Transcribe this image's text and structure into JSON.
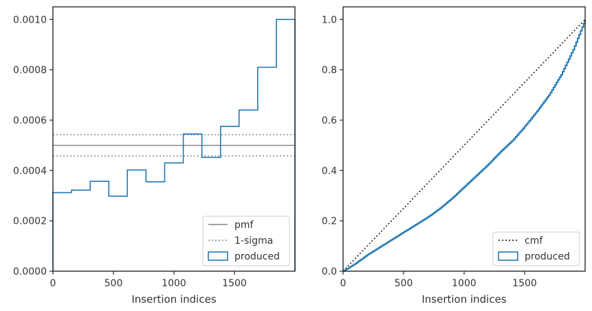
{
  "chart_data": [
    {
      "type": "line",
      "xlabel": "Insertion indices",
      "ylabel": "",
      "xlim": [
        0,
        2000
      ],
      "ylim": [
        0,
        0.00105
      ],
      "xticks": [
        0,
        500,
        1000,
        1500
      ],
      "yticks": [
        0,
        0.0002,
        0.0004,
        0.0006,
        0.0008,
        0.001
      ],
      "ytick_labels": [
        "0.0000",
        "0.0002",
        "0.0004",
        "0.0006",
        "0.0008",
        "0.0010"
      ],
      "grid": false,
      "legend_position": "bottom-right",
      "series": [
        {
          "name": "pmf",
          "style": "solid",
          "color": "#808080",
          "y": 0.0005
        },
        {
          "name": "1-sigma",
          "style": "dotted",
          "color": "#808080",
          "y": [
            0.000458,
            0.000542
          ]
        },
        {
          "name": "produced",
          "style": "step",
          "color": "#1f77b4",
          "bin_edges": [
            0,
            154,
            308,
            462,
            615,
            769,
            923,
            1077,
            1231,
            1385,
            1538,
            1692,
            1846,
            2000
          ],
          "values": [
            0.000312,
            0.000322,
            0.000357,
            0.000298,
            0.000402,
            0.000355,
            0.00043,
            0.000545,
            0.000452,
            0.000575,
            0.00064,
            0.00081,
            0.001
          ]
        }
      ]
    },
    {
      "type": "line",
      "xlabel": "Insertion indices",
      "ylabel": "",
      "xlim": [
        0,
        2000
      ],
      "ylim": [
        0,
        1.05
      ],
      "xticks": [
        0,
        500,
        1000,
        1500
      ],
      "yticks": [
        0,
        0.2,
        0.4,
        0.6,
        0.8,
        1.0
      ],
      "ytick_labels": [
        "0.0",
        "0.2",
        "0.4",
        "0.6",
        "0.8",
        "1.0"
      ],
      "grid": false,
      "legend_position": "bottom-right",
      "series": [
        {
          "name": "cmf",
          "style": "dotted",
          "color": "#000000",
          "x": [
            0,
            2000
          ],
          "y": [
            0,
            1.0
          ]
        },
        {
          "name": "produced",
          "style": "step",
          "color": "#1f77b4",
          "x": [
            0,
            100,
            200,
            300,
            400,
            500,
            600,
            700,
            800,
            900,
            1000,
            1100,
            1200,
            1300,
            1400,
            1500,
            1600,
            1700,
            1800,
            1900,
            2000
          ],
          "y": [
            0,
            0.03,
            0.065,
            0.095,
            0.125,
            0.155,
            0.185,
            0.215,
            0.25,
            0.29,
            0.335,
            0.38,
            0.425,
            0.475,
            0.52,
            0.575,
            0.635,
            0.7,
            0.78,
            0.88,
            1.0
          ]
        }
      ]
    }
  ]
}
